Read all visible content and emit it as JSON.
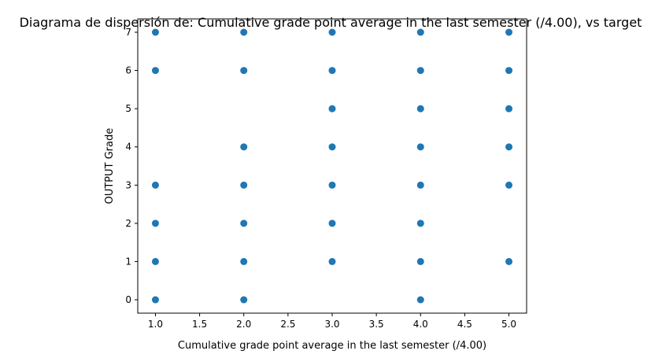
{
  "chart_data": {
    "type": "scatter",
    "title": "Diagrama de dispersión de: Cumulative grade point average in the last semester (/4.00), vs target",
    "xlabel": "Cumulative grade point average in the last semester (/4.00)",
    "ylabel": "OUTPUT Grade",
    "xlim": [
      0.8,
      5.2
    ],
    "ylim": [
      -0.35,
      7.35
    ],
    "xticks": [
      1.0,
      1.5,
      2.0,
      2.5,
      3.0,
      3.5,
      4.0,
      4.5,
      5.0
    ],
    "xtick_labels": [
      "1.0",
      "1.5",
      "2.0",
      "2.5",
      "3.0",
      "3.5",
      "4.0",
      "4.5",
      "5.0"
    ],
    "yticks": [
      0,
      1,
      2,
      3,
      4,
      5,
      6,
      7
    ],
    "ytick_labels": [
      "0",
      "1",
      "2",
      "3",
      "4",
      "5",
      "6",
      "7"
    ],
    "grid": false,
    "marker_color": "#1f77b4",
    "points": [
      {
        "x": 1,
        "y": 0
      },
      {
        "x": 1,
        "y": 1
      },
      {
        "x": 1,
        "y": 2
      },
      {
        "x": 1,
        "y": 3
      },
      {
        "x": 1,
        "y": 6
      },
      {
        "x": 1,
        "y": 7
      },
      {
        "x": 2,
        "y": 0
      },
      {
        "x": 2,
        "y": 1
      },
      {
        "x": 2,
        "y": 2
      },
      {
        "x": 2,
        "y": 3
      },
      {
        "x": 2,
        "y": 4
      },
      {
        "x": 2,
        "y": 6
      },
      {
        "x": 2,
        "y": 7
      },
      {
        "x": 3,
        "y": 1
      },
      {
        "x": 3,
        "y": 2
      },
      {
        "x": 3,
        "y": 3
      },
      {
        "x": 3,
        "y": 4
      },
      {
        "x": 3,
        "y": 5
      },
      {
        "x": 3,
        "y": 6
      },
      {
        "x": 3,
        "y": 7
      },
      {
        "x": 4,
        "y": 0
      },
      {
        "x": 4,
        "y": 1
      },
      {
        "x": 4,
        "y": 2
      },
      {
        "x": 4,
        "y": 3
      },
      {
        "x": 4,
        "y": 4
      },
      {
        "x": 4,
        "y": 5
      },
      {
        "x": 4,
        "y": 6
      },
      {
        "x": 4,
        "y": 7
      },
      {
        "x": 5,
        "y": 1
      },
      {
        "x": 5,
        "y": 3
      },
      {
        "x": 5,
        "y": 4
      },
      {
        "x": 5,
        "y": 5
      },
      {
        "x": 5,
        "y": 6
      },
      {
        "x": 5,
        "y": 7
      }
    ]
  }
}
